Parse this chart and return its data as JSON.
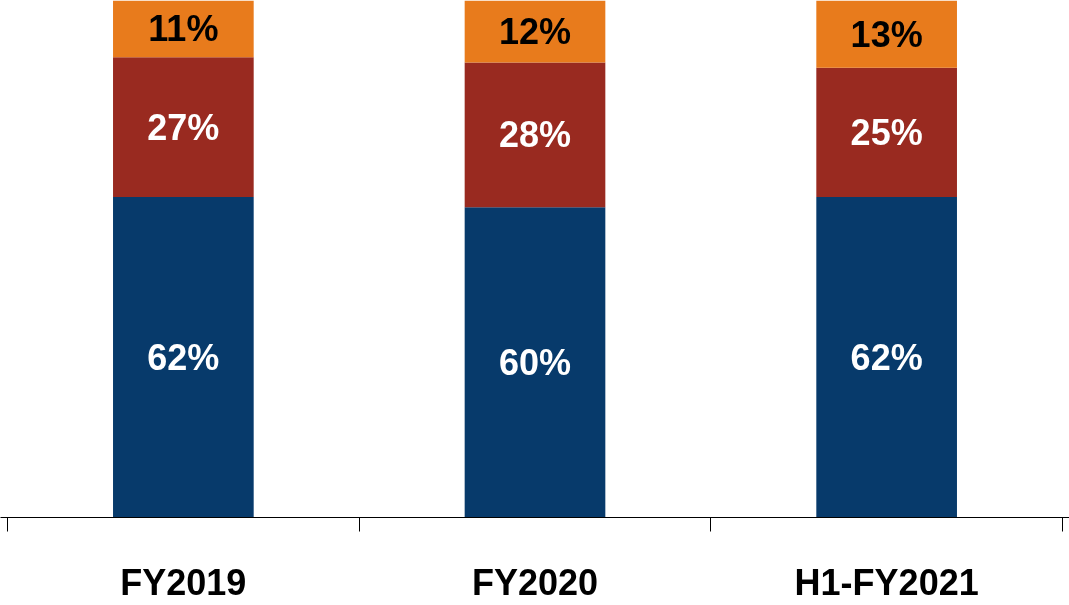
{
  "chart_data": {
    "type": "bar",
    "stacked": true,
    "categories": [
      "FY2019",
      "FY2020",
      "H1-FY2021"
    ],
    "ylim": [
      0,
      100
    ],
    "tick_labels": "x",
    "series": [
      {
        "color": "#073a6b",
        "values": [
          62,
          60,
          62
        ],
        "value_labels": [
          "62%",
          "60%",
          "62%"
        ]
      },
      {
        "color": "#992a20",
        "values": [
          27,
          28,
          25
        ],
        "value_labels": [
          "27%",
          "28%",
          "25%"
        ]
      },
      {
        "color": "#e87b1c",
        "values": [
          11,
          12,
          13
        ],
        "value_labels": [
          "11%",
          "12%",
          "13%"
        ]
      }
    ]
  }
}
